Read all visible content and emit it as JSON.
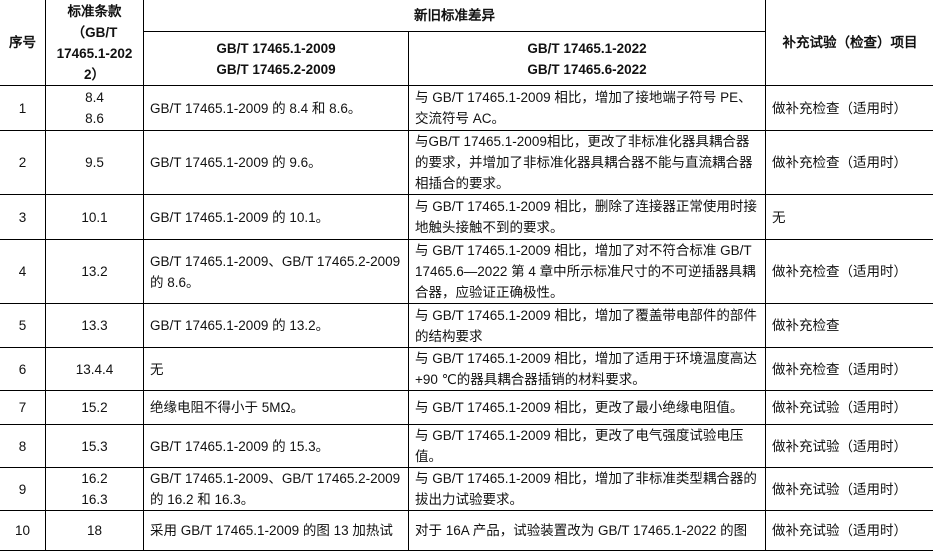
{
  "header": {
    "seq": "序号",
    "clause": [
      "标准条款",
      "（GB/T",
      "17465.1-202",
      "2）"
    ],
    "diff_group": "新旧标准差异",
    "old_std": [
      "GB/T 17465.1-2009",
      "GB/T 17465.2-2009"
    ],
    "new_std": [
      "GB/T 17465.1-2022",
      "GB/T 17465.6-2022"
    ],
    "supplement": "补充试验（检查）项目"
  },
  "rows": [
    {
      "seq": "1",
      "clause": [
        "8.4",
        "8.6"
      ],
      "old": "GB/T 17465.1-2009 的 8.4 和 8.6。",
      "new": "与 GB/T 17465.1-2009 相比，增加了接地端子符号 PE、交流符号 AC。",
      "supplement": "做补充检查（适用时）"
    },
    {
      "seq": "2",
      "clause": [
        "9.5"
      ],
      "old": "GB/T 17465.1-2009 的 9.6。",
      "new": "与GB/T 17465.1-2009相比，更改了非标准化器具耦合器的要求，并增加了非标准化器具耦合器不能与直流耦合器相插合的要求。",
      "supplement": "做补充检查（适用时）"
    },
    {
      "seq": "3",
      "clause": [
        "10.1"
      ],
      "old": "GB/T 17465.1-2009 的 10.1。",
      "new": "与 GB/T 17465.1-2009 相比，删除了连接器正常使用时接地触头接触不到的要求。",
      "supplement": "无"
    },
    {
      "seq": "4",
      "clause": [
        "13.2"
      ],
      "old": "GB/T 17465.1-2009、GB/T 17465.2-2009 的 8.6。",
      "new": "与 GB/T 17465.1-2009 相比，增加了对不符合标准 GB/T 17465.6—2022 第 4 章中所示标准尺寸的不可逆插器具耦合器，应验证正确极性。",
      "supplement": "做补充检查（适用时）"
    },
    {
      "seq": "5",
      "clause": [
        "13.3"
      ],
      "old": "GB/T 17465.1-2009 的  13.2。",
      "new": "与 GB/T 17465.1-2009 相比，增加了覆盖带电部件的部件的结构要求",
      "supplement": "做补充检查"
    },
    {
      "seq": "6",
      "clause": [
        "13.4.4"
      ],
      "old": "无",
      "new": "与 GB/T 17465.1-2009 相比，增加了适用于环境温度高达+90 ℃的器具耦合器插销的材料要求。",
      "supplement": "做补充检查（适用时）"
    },
    {
      "seq": "7",
      "clause": [
        "15.2"
      ],
      "old": "绝缘电阻不得小于 5MΩ。",
      "new": "与 GB/T 17465.1-2009 相比，更改了最小绝缘电阻值。",
      "supplement": "做补充试验（适用时）"
    },
    {
      "seq": "8",
      "clause": [
        "15.3"
      ],
      "old": "GB/T 17465.1-2009 的 15.3。",
      "new": "与 GB/T 17465.1-2009 相比，更改了电气强度试验电压值。",
      "supplement": "做补充试验（适用时）"
    },
    {
      "seq": "9",
      "clause": [
        "16.2",
        "16.3"
      ],
      "old": "GB/T 17465.1-2009、GB/T 17465.2-2009 的 16.2 和 16.3。",
      "new": "与 GB/T 17465.1-2009 相比，增加了非标准类型耦合器的拔出力试验要求。",
      "supplement": "做补充试验（适用时）"
    },
    {
      "seq": "10",
      "clause": [
        "18"
      ],
      "old": "采用 GB/T 17465.1-2009 的图 13 加热试",
      "new": "对于 16A 产品，试验装置改为 GB/T 17465.1-2022 的图",
      "supplement": "做补充试验（适用时）"
    }
  ]
}
